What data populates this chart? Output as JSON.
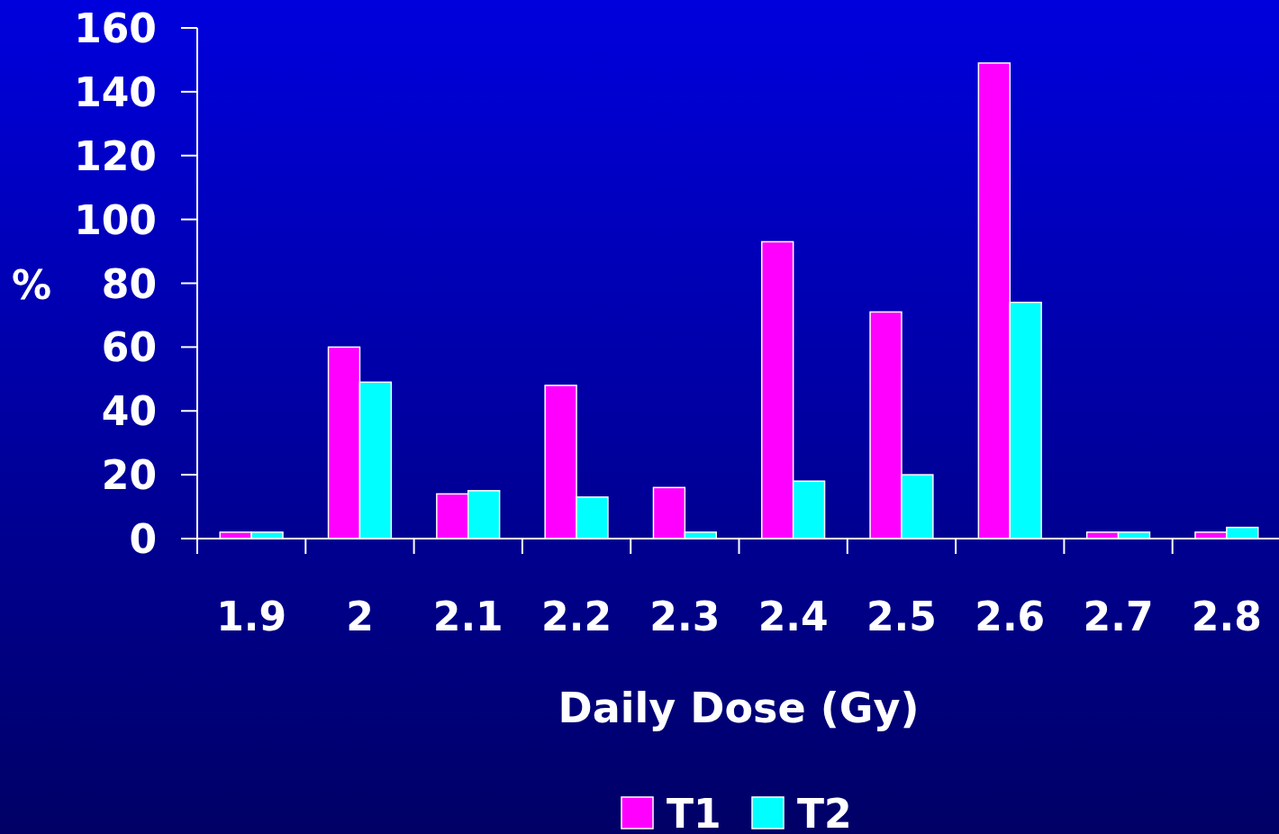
{
  "chart_data": {
    "type": "bar",
    "xlabel": "Daily Dose (Gy)",
    "ylabel": "%",
    "categories": [
      "1.9",
      "2",
      "2.1",
      "2.2",
      "2.3",
      "2.4",
      "2.5",
      "2.6",
      "2.7",
      "2.8"
    ],
    "series": [
      {
        "name": "T1",
        "color": "#ff00ff",
        "values": [
          2,
          60,
          14,
          48,
          16,
          93,
          71,
          149,
          2,
          2
        ]
      },
      {
        "name": "T2",
        "color": "#00ffff",
        "values": [
          2,
          49,
          15,
          13,
          2,
          18,
          20,
          74,
          2,
          3.5
        ]
      }
    ],
    "ylim": [
      0,
      160
    ],
    "yticks": [
      0,
      20,
      40,
      60,
      80,
      100,
      120,
      140,
      160
    ],
    "grid": false,
    "legend": "bottom"
  }
}
